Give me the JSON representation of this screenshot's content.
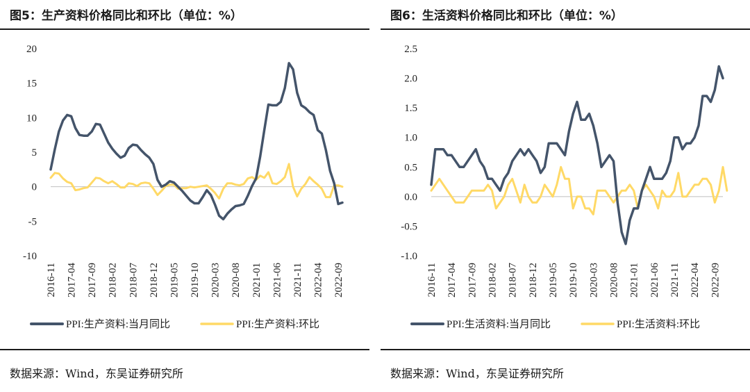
{
  "colors": {
    "dark": "#44546a",
    "yellow": "#ffd966",
    "rule": "#1a1a1a"
  },
  "chart_data": [
    {
      "type": "line",
      "title": "图5：生产资料价格同比和环比（单位：%）",
      "source": "数据来源：Wind，东吴证券研究所",
      "ylim": [
        -10,
        20
      ],
      "yticks": [
        "20",
        "15",
        "10",
        "5",
        "0",
        "-5",
        "-10"
      ],
      "x_tick_labels": [
        "2016-11",
        "2017-04",
        "2017-09",
        "2018-02",
        "2018-07",
        "2018-12",
        "2019-05",
        "2019-10",
        "2020-03",
        "2020-08",
        "2021-01",
        "2021-06",
        "2021-11",
        "2022-04",
        "2022-09"
      ],
      "x_start": "2016-11",
      "x_end": "2022-10",
      "grid": false,
      "legend_position": "bottom",
      "series": [
        {
          "name": "PPI:生产资料:当月同比",
          "color": "#44546a",
          "values": [
            2.5,
            5.4,
            8.0,
            9.6,
            10.4,
            10.2,
            8.5,
            7.5,
            7.4,
            7.4,
            8.0,
            9.1,
            9.0,
            7.7,
            6.4,
            5.5,
            4.8,
            4.2,
            4.5,
            5.6,
            6.1,
            6.0,
            5.3,
            4.7,
            4.2,
            3.3,
            1.0,
            0.0,
            0.3,
            0.8,
            0.6,
            0.0,
            -0.6,
            -1.3,
            -2.0,
            -2.4,
            -2.4,
            -1.5,
            -0.5,
            -1.2,
            -2.6,
            -4.2,
            -4.7,
            -3.9,
            -3.3,
            -2.8,
            -2.7,
            -2.5,
            -1.3,
            0.1,
            1.2,
            4.4,
            8.2,
            11.9,
            11.8,
            11.8,
            12.3,
            14.3,
            17.9,
            17.0,
            13.6,
            11.8,
            11.4,
            10.8,
            10.4,
            8.2,
            7.7,
            5.3,
            2.3,
            0.5,
            -2.5,
            -2.3
          ]
        },
        {
          "name": "PPI:生产资料:环比",
          "color": "#ffd966",
          "values": [
            1.3,
            2.0,
            1.9,
            1.2,
            0.7,
            0.5,
            -0.5,
            -0.4,
            -0.2,
            -0.1,
            0.6,
            1.3,
            1.2,
            0.8,
            0.5,
            0.8,
            0.4,
            -0.1,
            -0.1,
            0.5,
            0.4,
            0.1,
            0.5,
            0.6,
            0.5,
            -0.3,
            -1.2,
            -0.6,
            0.1,
            0.3,
            0.3,
            -0.3,
            -0.2,
            -0.2,
            0.0,
            -0.1,
            0.0,
            0.1,
            0.2,
            -0.3,
            -0.9,
            -1.7,
            -0.3,
            0.5,
            0.5,
            0.3,
            0.2,
            0.4,
            1.2,
            1.4,
            1.0,
            1.6,
            1.3,
            2.1,
            0.5,
            0.4,
            0.8,
            1.4,
            3.3,
            0.0,
            -1.4,
            -0.3,
            0.4,
            1.4,
            0.8,
            0.3,
            -0.3,
            -1.5,
            -1.5,
            0.2,
            0.2,
            0.0
          ]
        }
      ]
    },
    {
      "type": "line",
      "title": "图6：生活资料价格同比和环比（单位：%）",
      "source": "数据来源：Wind，东吴证券研究所",
      "ylim": [
        -1.0,
        2.5
      ],
      "yticks": [
        "2.5",
        "2.0",
        "1.5",
        "1.0",
        "0.5",
        "0.0",
        "-0.5",
        "-1.0"
      ],
      "x_tick_labels": [
        "2016-11",
        "2017-04",
        "2017-09",
        "2018-02",
        "2018-07",
        "2018-12",
        "2019-05",
        "2019-10",
        "2020-03",
        "2020-08",
        "2021-01",
        "2021-06",
        "2021-11",
        "2022-04",
        "2022-09"
      ],
      "x_start": "2016-11",
      "x_end": "2022-10",
      "grid": false,
      "legend_position": "bottom",
      "series": [
        {
          "name": "PPI:生活资料:当月同比",
          "color": "#44546a",
          "values": [
            0.2,
            0.8,
            0.8,
            0.8,
            0.7,
            0.7,
            0.6,
            0.5,
            0.5,
            0.6,
            0.7,
            0.8,
            0.6,
            0.5,
            0.3,
            0.3,
            0.2,
            0.1,
            0.3,
            0.4,
            0.6,
            0.7,
            0.8,
            0.7,
            0.8,
            0.7,
            0.6,
            0.4,
            0.5,
            0.9,
            0.9,
            0.9,
            0.8,
            0.7,
            1.1,
            1.4,
            1.6,
            1.3,
            1.3,
            1.4,
            1.2,
            0.9,
            0.5,
            0.6,
            0.7,
            0.6,
            -0.1,
            -0.6,
            -0.8,
            -0.4,
            -0.2,
            -0.2,
            0.1,
            0.3,
            0.5,
            0.3,
            0.3,
            0.3,
            0.4,
            0.6,
            1.0,
            1.0,
            0.8,
            0.9,
            0.9,
            1.0,
            1.2,
            1.7,
            1.7,
            1.6,
            1.8,
            2.2,
            2.0
          ]
        },
        {
          "name": "PPI:生活资料:环比",
          "color": "#ffd966",
          "values": [
            0.1,
            0.2,
            0.3,
            0.2,
            0.1,
            0.0,
            -0.1,
            -0.1,
            -0.1,
            0.0,
            0.1,
            0.1,
            0.1,
            0.1,
            0.2,
            0.1,
            -0.2,
            -0.1,
            0.0,
            0.2,
            0.3,
            0.1,
            -0.1,
            0.2,
            0.0,
            -0.1,
            -0.1,
            0.0,
            0.2,
            0.1,
            0.0,
            0.2,
            0.5,
            0.3,
            0.3,
            -0.2,
            0.0,
            0.0,
            -0.2,
            -0.2,
            -0.3,
            0.1,
            0.1,
            0.1,
            0.0,
            -0.1,
            0.0,
            0.1,
            0.1,
            0.2,
            0.1,
            -0.2,
            0.1,
            0.2,
            0.1,
            0.0,
            -0.2,
            0.1,
            0.0,
            0.0,
            0.1,
            0.4,
            0.0,
            0.0,
            0.1,
            0.2,
            0.2,
            0.3,
            0.3,
            0.2,
            -0.1,
            0.1,
            0.5,
            0.1
          ]
        }
      ]
    }
  ]
}
